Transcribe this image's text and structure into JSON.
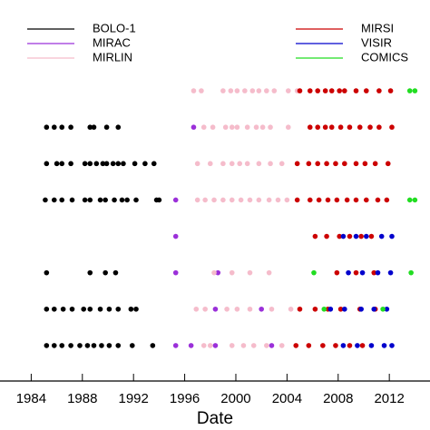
{
  "chart_data": {
    "type": "scatter",
    "x_label": "Date",
    "xlim": [
      1981.56,
      2015.18
    ],
    "ylim": [
      0,
      9
    ],
    "xticks": [
      1980,
      1984,
      1988,
      1992,
      1996,
      2000,
      2004,
      2008,
      2012
    ],
    "series": [
      {
        "name": "BOLO-1",
        "color": "#000000",
        "x": [
          1985.2,
          1985.8,
          1986.4,
          1987.1,
          1988.6,
          1988.9,
          1989.9,
          1990.8,
          1985.2,
          1986.0,
          1986.4,
          1987.1,
          1988.2,
          1988.6,
          1989.1,
          1989.6,
          1989.9,
          1990.4,
          1990.8,
          1991.2,
          1992.1,
          1992.9,
          1993.6,
          1985.1,
          1985.8,
          1986.4,
          1987.2,
          1988.2,
          1988.6,
          1989.4,
          1989.8,
          1990.5,
          1991.1,
          1991.5,
          1992.2,
          1993.8,
          1994.0,
          1985.2,
          1988.6,
          1989.8,
          1990.6,
          1985.2,
          1985.8,
          1986.5,
          1987.2,
          1988.1,
          1988.6,
          1989.4,
          1990.1,
          1990.8,
          1991.8,
          1992.2,
          1985.2,
          1985.8,
          1986.4,
          1987.1,
          1987.8,
          1988.4,
          1988.9,
          1989.5,
          1990.1,
          1990.8,
          1991.9,
          1993.5
        ],
        "values": [
          7,
          7,
          7,
          7,
          7,
          7,
          7,
          7,
          6,
          6,
          6,
          6,
          6,
          6,
          6,
          6,
          6,
          6,
          6,
          6,
          6,
          6,
          6,
          5,
          5,
          5,
          5,
          5,
          5,
          5,
          5,
          5,
          5,
          5,
          5,
          5,
          5,
          3,
          3,
          3,
          3,
          2,
          2,
          2,
          2,
          2,
          2,
          2,
          2,
          2,
          2,
          2,
          1,
          1,
          1,
          1,
          1,
          1,
          1,
          1,
          1,
          1,
          1,
          1
        ]
      },
      {
        "name": "MIRAC",
        "color": "#9b30d9",
        "x": [
          1996.7,
          1995.3,
          1995.3,
          1995.3,
          1998.6,
          1998.4,
          2002.0,
          1995.3,
          1996.5,
          1998.4,
          2002.8
        ],
        "values": [
          7,
          5,
          4,
          3,
          3,
          2,
          2,
          1,
          1,
          1,
          1
        ]
      },
      {
        "name": "MIRLIN",
        "color": "#f5bccb",
        "x": [
          1996.7,
          1997.3,
          1999.0,
          1999.6,
          2000.1,
          2000.7,
          2001.3,
          2001.8,
          2002.4,
          2003.0,
          2004.1,
          2004.8,
          1997.5,
          1998.2,
          1999.2,
          1999.7,
          2000.1,
          2000.9,
          2001.6,
          2002.1,
          2002.7,
          2004.1,
          1997.0,
          1998.0,
          1999.0,
          1999.7,
          2000.3,
          2000.9,
          2001.8,
          2002.7,
          2003.6,
          1997.0,
          1997.6,
          1998.3,
          1999.0,
          1999.7,
          2000.4,
          2001.1,
          2001.8,
          2002.6,
          2003.3,
          2004.0,
          1998.3,
          1999.7,
          2001.1,
          2002.6,
          1996.9,
          1997.6,
          1999.3,
          2000.1,
          2001.1,
          2002.8,
          2004.3,
          1997.5,
          1998.0,
          1999.7,
          2000.6,
          2001.4,
          2002.4,
          2003.6
        ],
        "values": [
          8,
          8,
          8,
          8,
          8,
          8,
          8,
          8,
          8,
          8,
          8,
          8,
          7,
          7,
          7,
          7,
          7,
          7,
          7,
          7,
          7,
          7,
          6,
          6,
          6,
          6,
          6,
          6,
          6,
          6,
          6,
          5,
          5,
          5,
          5,
          5,
          5,
          5,
          5,
          5,
          5,
          5,
          3,
          3,
          3,
          3,
          2,
          2,
          2,
          2,
          2,
          2,
          2,
          1,
          1,
          1,
          1,
          1,
          1,
          1
        ]
      },
      {
        "name": "MIRSI",
        "color": "#cc0000",
        "x": [
          2005.0,
          2005.8,
          2006.4,
          2007.0,
          2007.5,
          2008.1,
          2008.5,
          2009.4,
          2010.2,
          2011.2,
          2012.1,
          2005.8,
          2006.4,
          2007.0,
          2007.5,
          2008.2,
          2008.9,
          2009.7,
          2010.5,
          2011.2,
          2012.2,
          2004.8,
          2005.7,
          2006.4,
          2007.1,
          2007.8,
          2008.5,
          2009.4,
          2010.1,
          2010.9,
          2011.9,
          2004.8,
          2005.8,
          2006.5,
          2007.2,
          2007.9,
          2008.7,
          2009.4,
          2010.2,
          2011.1,
          2011.8,
          2006.2,
          2007.1,
          2008.1,
          2008.9,
          2009.8,
          2010.6,
          2007.9,
          2009.4,
          2010.8,
          2005.0,
          2006.2,
          2007.2,
          2008.2,
          2009.7,
          2010.9,
          2004.7,
          2005.7,
          2006.8,
          2007.8,
          2008.9,
          2009.9
        ],
        "values": [
          8,
          8,
          8,
          8,
          8,
          8,
          8,
          8,
          8,
          8,
          8,
          7,
          7,
          7,
          7,
          7,
          7,
          7,
          7,
          7,
          7,
          6,
          6,
          6,
          6,
          6,
          6,
          6,
          6,
          6,
          6,
          5,
          5,
          5,
          5,
          5,
          5,
          5,
          5,
          5,
          5,
          4,
          4,
          4,
          4,
          4,
          4,
          3,
          3,
          3,
          2,
          2,
          2,
          2,
          2,
          2,
          1,
          1,
          1,
          1,
          1,
          1
        ]
      },
      {
        "name": "VISIR",
        "color": "#0000cc",
        "x": [
          2008.4,
          2009.4,
          2010.2,
          2011.4,
          2012.2,
          2008.8,
          2009.9,
          2011.1,
          2012.1,
          2007.4,
          2008.5,
          2009.8,
          2010.8,
          2011.8,
          2008.4,
          2009.5,
          2010.6,
          2011.6,
          2012.2
        ],
        "values": [
          4,
          4,
          4,
          4,
          4,
          3,
          3,
          3,
          3,
          2,
          2,
          2,
          2,
          2,
          1,
          1,
          1,
          1,
          1
        ]
      },
      {
        "name": "COMICS",
        "color": "#22dd22",
        "x": [
          2013.6,
          2014.0,
          2013.6,
          2014.0,
          2006.1,
          2013.7,
          2006.9,
          2011.5
        ],
        "values": [
          8,
          8,
          5,
          5,
          3,
          3,
          2,
          2
        ]
      }
    ]
  }
}
